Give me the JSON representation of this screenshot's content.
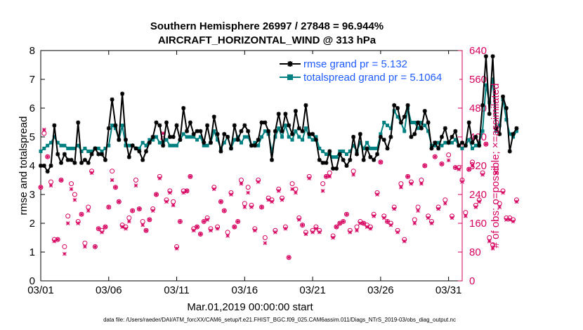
{
  "chart_data": {
    "type": "line",
    "title": "Southern Hemisphere 26997 / 27848 = 96.944%",
    "subtitle": "AIRCRAFT_HORIZONTAL_WIND @ 313 hPa",
    "xlabel": "Mar.01,2019 00:00:00 start",
    "ylabel": "rmse and totalspread",
    "ylabel_right": "# of obs: o=possible; ×=assimilated",
    "footnote": "data file: /Users/raeder/DAI/ATM_forcXX/CAM6_setup/f.e21.FHIST_BGC.f09_025.CAM6assim.011/Diags_NTrS_2019-03/obs_diag_output.nc",
    "xlim": [
      1,
      32
    ],
    "ylim": [
      0,
      8
    ],
    "ylim_right": [
      0,
      640
    ],
    "xticks": [
      1,
      6,
      11,
      16,
      21,
      26,
      31
    ],
    "xtick_labels": [
      "03/01",
      "03/06",
      "03/11",
      "03/16",
      "03/21",
      "03/26",
      "03/31"
    ],
    "yticks": [
      0,
      1,
      2,
      3,
      4,
      5,
      6,
      7,
      8
    ],
    "yticks_right": [
      0,
      80,
      160,
      240,
      320,
      400,
      480,
      560,
      640
    ],
    "legend_position": "top-right",
    "x_step_days": 0.25,
    "x_start": 1.0,
    "colors": {
      "rmse": "#000000",
      "spread": "#008080",
      "obs": "#d6005e",
      "legend_text": "#1f5cff"
    },
    "series": [
      {
        "name": "rmse grand pr = 5.132",
        "values": [
          4.0,
          4.0,
          3.8,
          4.0,
          5.4,
          4.4,
          4.1,
          4.4,
          4.2,
          4.2,
          4.1,
          5.5,
          4.1,
          4.2,
          4.1,
          4.4,
          4.6,
          4.4,
          4.4,
          4.2,
          5.3,
          6.3,
          5.4,
          4.9,
          6.5,
          4.9,
          4.3,
          4.7,
          4.6,
          4.5,
          4.2,
          4.5,
          4.8,
          5.0,
          5.5,
          5.4,
          4.7,
          5.5,
          5.0,
          5.0,
          5.4,
          4.9,
          6.0,
          5.2,
          5.5,
          5.1,
          5.2,
          5.2,
          4.8,
          5.4,
          4.8,
          5.7,
          5.1,
          4.5,
          5.1,
          5.0,
          4.6,
          5.4,
          4.9,
          5.2,
          5.4,
          5.2,
          4.7,
          4.7,
          4.9,
          5.5,
          5.5,
          5.2,
          4.2,
          5.2,
          5.8,
          5.2,
          5.8,
          5.4,
          5.1,
          5.9,
          5.3,
          5.2,
          6.1,
          5.1,
          5.1,
          4.9,
          4.2,
          4.1,
          4.1,
          4.5,
          3.9,
          3.9,
          4.4,
          4.2,
          4.0,
          4.2,
          5.0,
          4.4,
          5.1,
          4.2,
          4.6,
          4.3,
          4.2,
          4.4,
          5.0,
          4.9,
          4.6,
          5.0,
          6.1,
          6.0,
          5.5,
          5.7,
          6.1,
          5.0,
          5.1,
          5.5,
          5.3,
          5.9,
          5.5,
          4.6,
          4.8,
          4.6,
          5.0,
          5.3,
          4.8,
          5.0,
          5.2,
          4.7,
          4.8,
          4.7,
          5.5,
          4.8,
          5.0,
          4.7,
          6.1,
          7.8,
          5.8,
          7.8,
          5.3,
          5.1,
          6.4,
          6.0,
          4.5,
          5.1,
          5.3
        ]
      },
      {
        "name": "totalspread grand pr = 5.1064",
        "values": [
          4.5,
          4.6,
          4.7,
          4.8,
          5.0,
          4.8,
          4.7,
          4.7,
          4.6,
          4.6,
          4.6,
          4.7,
          4.5,
          4.6,
          4.5,
          4.5,
          4.6,
          4.6,
          4.5,
          4.6,
          4.7,
          5.4,
          5.3,
          4.9,
          5.4,
          4.7,
          4.7,
          4.7,
          4.6,
          4.6,
          4.8,
          4.7,
          4.9,
          4.9,
          5.0,
          4.8,
          4.8,
          4.9,
          4.7,
          4.7,
          4.7,
          4.9,
          5.1,
          5.0,
          5.0,
          5.0,
          4.9,
          5.0,
          4.7,
          4.7,
          4.8,
          5.2,
          4.9,
          4.6,
          4.8,
          5.0,
          4.6,
          4.9,
          5.0,
          4.8,
          5.0,
          5.0,
          4.7,
          4.8,
          4.7,
          5.0,
          5.2,
          5.1,
          4.5,
          5.0,
          5.3,
          5.0,
          5.4,
          5.0,
          4.9,
          5.2,
          5.0,
          4.9,
          5.3,
          5.0,
          4.9,
          5.0,
          4.6,
          4.5,
          4.4,
          4.4,
          4.3,
          4.3,
          4.5,
          4.5,
          4.4,
          4.5,
          4.7,
          4.5,
          4.8,
          4.6,
          4.8,
          4.6,
          4.6,
          4.6,
          5.1,
          5.5,
          5.4,
          5.3,
          5.9,
          5.7,
          5.5,
          5.2,
          6.0,
          5.5,
          5.5,
          5.3,
          5.5,
          5.4,
          5.2,
          4.7,
          4.7,
          4.8,
          4.7,
          4.8,
          4.8,
          4.8,
          4.9,
          4.7,
          4.6,
          4.7,
          4.9,
          4.6,
          4.7,
          4.8,
          5.2,
          6.8,
          6.2,
          7.0,
          5.2,
          5.4,
          6.3,
          5.6,
          5.1,
          5.0,
          5.2
        ]
      },
      {
        "name": "obs possible",
        "axis": "right",
        "marker": "o",
        "values": [
          260,
          410,
          345,
          275,
          115,
          115,
          280,
          95,
          180,
          270,
          240,
          165,
          185,
          105,
          205,
          305,
          95,
          145,
          140,
          150,
          205,
          305,
          260,
          220,
          155,
          150,
          175,
          195,
          280,
          200,
          165,
          140,
          170,
          200,
          240,
          290,
          395,
          225,
          250,
          220,
          95,
          165,
          250,
          250,
          290,
          145,
          150,
          130,
          165,
          175,
          145,
          260,
          150,
          220,
          195,
          135,
          245,
          150,
          165,
          280,
          215,
          260,
          210,
          145,
          280,
          205,
          120,
          230,
          225,
          140,
          255,
          230,
          150,
          65,
          270,
          255,
          175,
          155,
          135,
          290,
          140,
          150,
          140,
          270,
          290,
          300,
          125,
          150,
          160,
          165,
          185,
          140,
          305,
          150,
          165,
          160,
          155,
          150,
          185,
          245,
          330,
          180,
          165,
          160,
          205,
          140,
          270,
          115,
          290,
          275,
          170,
          205,
          280,
          320,
          180,
          165,
          345,
          205,
          325,
          225,
          350,
          180,
          315,
          315,
          280,
          190,
          310,
          330,
          210,
          225,
          300,
          380,
          120,
          100,
          310,
          215,
          250,
          175,
          175,
          170,
          225
        ]
      },
      {
        "name": "obs assimilated",
        "axis": "right",
        "marker": "x",
        "values": [
          260,
          420,
          345,
          265,
          110,
          115,
          280,
          75,
          160,
          255,
          225,
          160,
          185,
          95,
          195,
          300,
          95,
          145,
          135,
          150,
          205,
          280,
          260,
          220,
          150,
          145,
          165,
          195,
          265,
          200,
          155,
          140,
          170,
          195,
          240,
          285,
          410,
          220,
          245,
          210,
          90,
          165,
          245,
          250,
          290,
          140,
          150,
          130,
          165,
          170,
          140,
          255,
          145,
          220,
          195,
          125,
          240,
          150,
          165,
          270,
          205,
          245,
          205,
          140,
          275,
          205,
          105,
          225,
          220,
          135,
          250,
          225,
          145,
          65,
          255,
          245,
          170,
          155,
          130,
          285,
          135,
          145,
          135,
          250,
          290,
          290,
          120,
          150,
          160,
          165,
          185,
          135,
          295,
          140,
          160,
          160,
          150,
          145,
          180,
          240,
          330,
          175,
          165,
          155,
          200,
          135,
          260,
          110,
          290,
          270,
          160,
          195,
          270,
          320,
          175,
          160,
          345,
          200,
          325,
          215,
          335,
          175,
          315,
          310,
          275,
          180,
          310,
          320,
          205,
          220,
          295,
          380,
          110,
          90,
          300,
          205,
          245,
          170,
          170,
          165,
          220
        ]
      }
    ]
  }
}
